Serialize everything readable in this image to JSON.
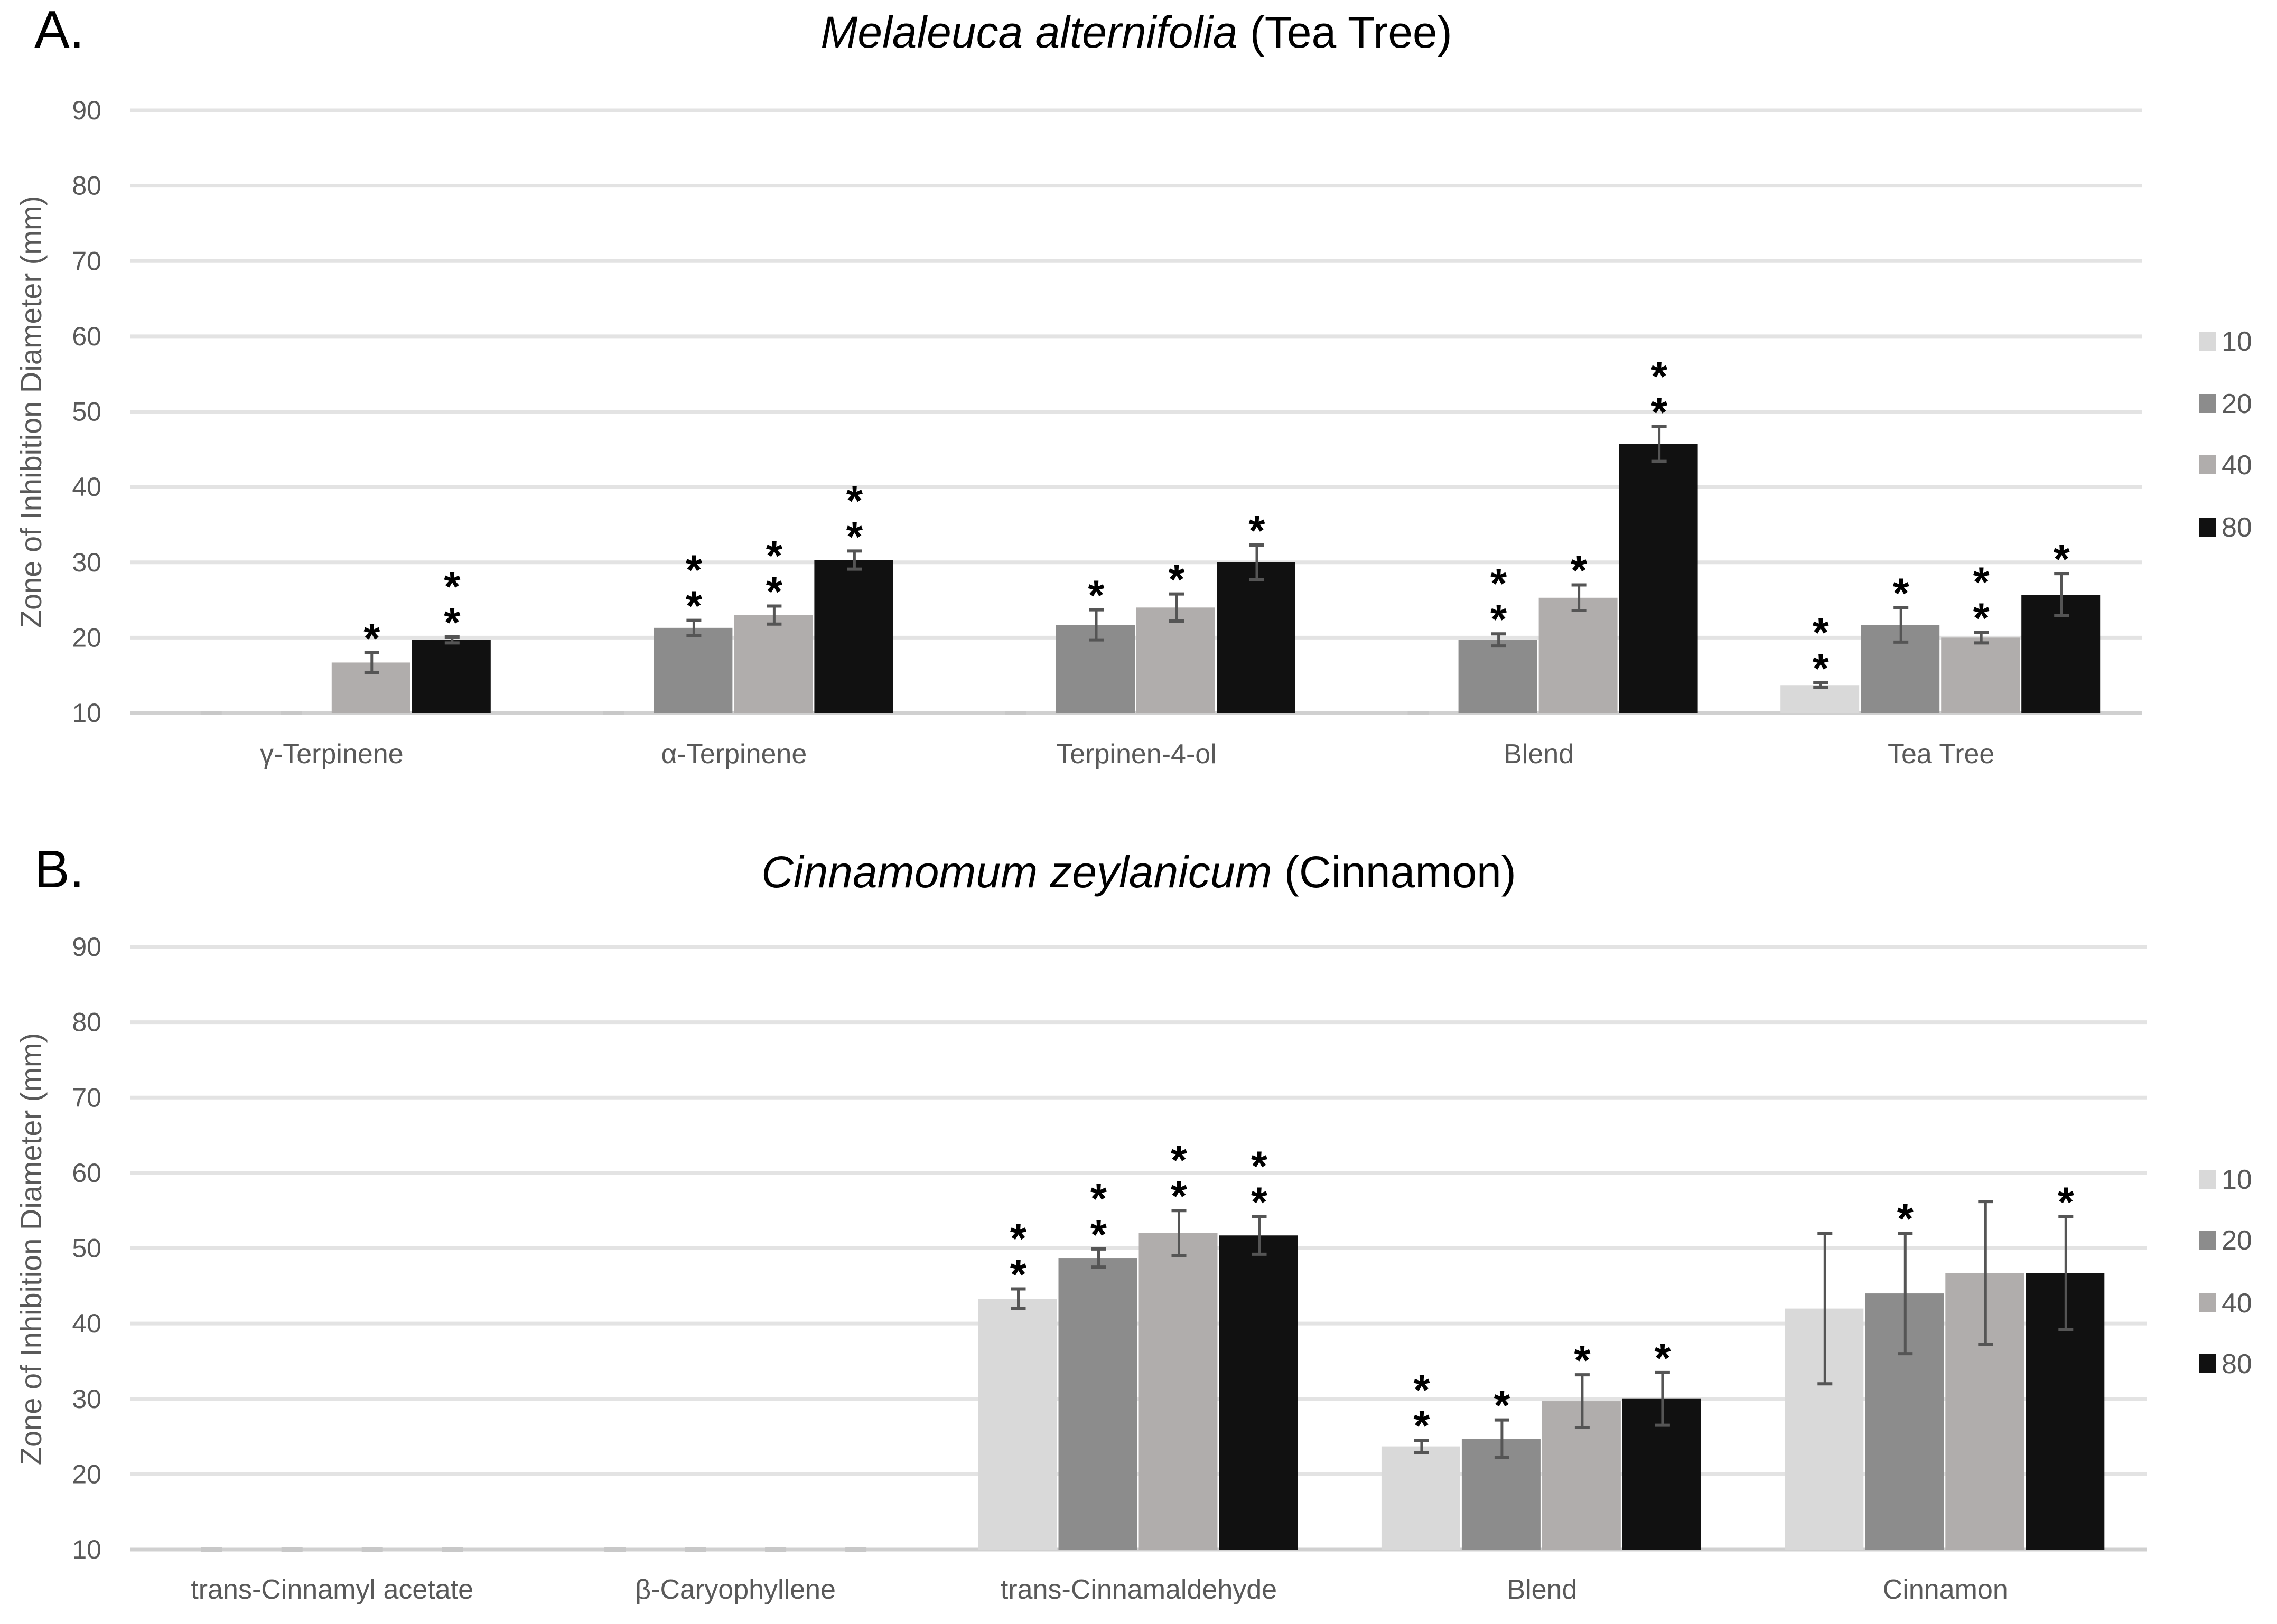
{
  "series_colors": [
    "#d9d9d9",
    "#8c8c8c",
    "#b0adac",
    "#111111"
  ],
  "legend": [
    "10",
    "20",
    "40",
    "80"
  ],
  "chart_data": [
    {
      "type": "bar",
      "panel_label": "A.",
      "title_italic": "Melaleuca alternifolia",
      "title_rest": " (Tea Tree)",
      "ylabel": "Zone of Inhibition Diameter (mm)",
      "ylim": [
        10,
        90
      ],
      "yticks": [
        "10",
        "20",
        "30",
        "40",
        "50",
        "60",
        "70",
        "80",
        "90"
      ],
      "grid": true,
      "legend_position": "right",
      "categories": [
        "γ-Terpinene",
        "α-Terpinene",
        "Terpinen-4-ol",
        "Blend",
        "Tea Tree"
      ],
      "series": [
        {
          "name": "10",
          "values": [
            10,
            10,
            10,
            10,
            13.7
          ],
          "errors": [
            0,
            0,
            0,
            0,
            0.3
          ],
          "stars": [
            0,
            0,
            0,
            0,
            2
          ]
        },
        {
          "name": "20",
          "values": [
            10,
            21.3,
            21.7,
            19.7,
            21.7
          ],
          "errors": [
            0,
            1.0,
            2.0,
            0.8,
            2.3
          ],
          "stars": [
            0,
            2,
            1,
            2,
            1
          ]
        },
        {
          "name": "40",
          "values": [
            16.7,
            23,
            24,
            25.3,
            20
          ],
          "errors": [
            1.3,
            1.2,
            1.8,
            1.7,
            0.7
          ],
          "stars": [
            1,
            2,
            1,
            1,
            2
          ]
        },
        {
          "name": "80",
          "values": [
            19.7,
            30.3,
            30,
            45.7,
            25.7
          ],
          "errors": [
            0.4,
            1.2,
            2.3,
            2.3,
            2.8
          ],
          "stars": [
            2,
            2,
            1,
            2,
            1
          ]
        }
      ]
    },
    {
      "type": "bar",
      "panel_label": "B.",
      "title_italic": "Cinnamomum zeylanicum",
      "title_rest": " (Cinnamon)",
      "ylabel": "Zone of Inhibition Diameter (mm)",
      "ylim": [
        10,
        90
      ],
      "yticks": [
        "10",
        "20",
        "30",
        "40",
        "50",
        "60",
        "70",
        "80",
        "90"
      ],
      "grid": true,
      "legend_position": "right",
      "categories": [
        "trans-Cinnamyl acetate",
        "β-Caryophyllene",
        "trans-Cinnamaldehyde",
        "Blend",
        "Cinnamon"
      ],
      "series": [
        {
          "name": "10",
          "values": [
            10,
            10,
            43.3,
            23.7,
            42
          ],
          "errors": [
            0,
            0,
            1.3,
            0.8,
            10
          ],
          "stars": [
            0,
            0,
            2,
            2,
            0
          ]
        },
        {
          "name": "20",
          "values": [
            10,
            10,
            48.7,
            24.7,
            44
          ],
          "errors": [
            0,
            0,
            1.2,
            2.5,
            8
          ],
          "stars": [
            0,
            0,
            2,
            1,
            1
          ]
        },
        {
          "name": "40",
          "values": [
            10,
            10,
            52,
            29.7,
            46.7
          ],
          "errors": [
            0,
            0,
            3.0,
            3.5,
            9.5
          ],
          "stars": [
            0,
            0,
            2,
            1,
            0
          ]
        },
        {
          "name": "80",
          "values": [
            10,
            10,
            51.7,
            30,
            46.7
          ],
          "errors": [
            0,
            0,
            2.5,
            3.5,
            7.5
          ],
          "stars": [
            0,
            0,
            2,
            1,
            1
          ]
        }
      ]
    }
  ]
}
